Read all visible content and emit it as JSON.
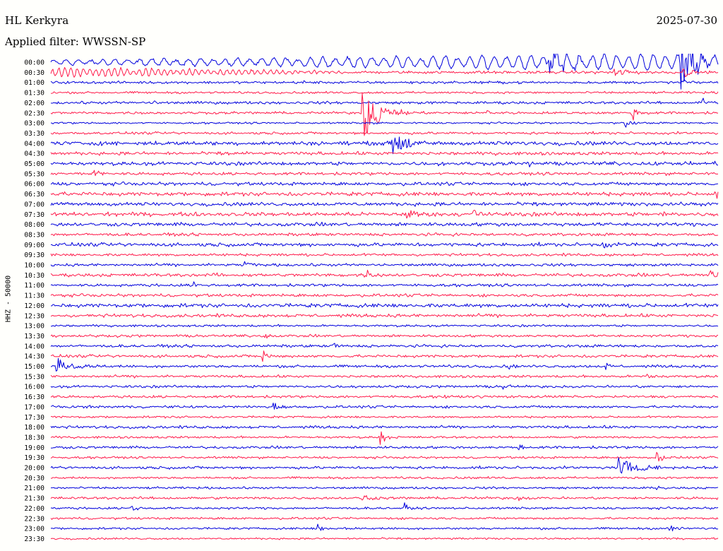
{
  "header": {
    "station": "HL Kerkyra",
    "filter": "Applied filter: WWSSN-SP",
    "date": "2025-07-30",
    "channel": "HHZ - 50000"
  },
  "colors": {
    "trace_a": "#0000dd",
    "trace_b": "#ff1a4a",
    "background": "#fffffc"
  },
  "chart_data": {
    "type": "line",
    "title": "HL Kerkyra",
    "subtitle": "Applied filter: WWSSN-SP",
    "ylabel": "HHZ - 50000",
    "x_unit": "minutes",
    "xlim": [
      0,
      30
    ],
    "categories": [
      "00:00",
      "00:30",
      "01:00",
      "01:30",
      "02:00",
      "02:30",
      "03:00",
      "03:30",
      "04:00",
      "04:30",
      "05:00",
      "05:30",
      "06:00",
      "06:30",
      "07:00",
      "07:30",
      "08:00",
      "08:30",
      "09:00",
      "09:30",
      "10:00",
      "10:30",
      "11:00",
      "11:30",
      "12:00",
      "12:30",
      "13:00",
      "13:30",
      "14:00",
      "14:30",
      "15:00",
      "15:30",
      "16:00",
      "16:30",
      "17:00",
      "17:30",
      "18:00",
      "18:30",
      "19:00",
      "19:30",
      "20:00",
      "20:30",
      "21:00",
      "21:30",
      "22:00",
      "22:30",
      "23:00",
      "23:30"
    ],
    "series_colors": [
      "#0000dd",
      "#ff1a4a"
    ],
    "noise": [
      1.6,
      1.5,
      1.4,
      1.2,
      1.5,
      1.4,
      1.0,
      1.4,
      2.2,
      1.8,
      2.0,
      1.6,
      1.8,
      2.2,
      2.0,
      2.2,
      2.0,
      1.6,
      2.0,
      1.5,
      1.5,
      1.8,
      1.5,
      1.6,
      2.2,
      1.8,
      1.2,
      1.4,
      1.5,
      1.6,
      1.5,
      1.4,
      1.4,
      1.4,
      1.4,
      1.2,
      1.5,
      1.2,
      1.4,
      1.2,
      1.5,
      1.2,
      1.2,
      1.4,
      1.2,
      1.2,
      1.2,
      1.0
    ],
    "oscillations": [
      {
        "row": 0,
        "start": 0.0,
        "end": 30.0,
        "amp": [
          3,
          13
        ],
        "period": 0.55
      },
      {
        "row": 1,
        "start": 0.0,
        "end": 13.0,
        "amp": [
          7,
          2
        ],
        "period": 0.28
      }
    ],
    "events": [
      {
        "row": 0,
        "t": 22.3,
        "amp": 12,
        "dur": 2.0
      },
      {
        "row": 0,
        "t": 28.3,
        "amp": 34,
        "dur": 1.2
      },
      {
        "row": 1,
        "t": 25.3,
        "amp": 6,
        "dur": 1.5
      },
      {
        "row": 1,
        "t": 28.4,
        "amp": 6,
        "dur": 0.8
      },
      {
        "row": 2,
        "t": 11.2,
        "amp": 3,
        "dur": 0.6
      },
      {
        "row": 2,
        "t": 28.4,
        "amp": 6,
        "dur": 0.4
      },
      {
        "row": 4,
        "t": 4.6,
        "amp": 3,
        "dur": 0.3
      },
      {
        "row": 4,
        "t": 29.3,
        "amp": 8,
        "dur": 0.5
      },
      {
        "row": 5,
        "t": 14.0,
        "amp": 28,
        "dur": 1.6
      },
      {
        "row": 5,
        "t": 19.6,
        "amp": 4,
        "dur": 0.4
      },
      {
        "row": 5,
        "t": 26.1,
        "amp": 9,
        "dur": 0.6
      },
      {
        "row": 6,
        "t": 25.8,
        "amp": 5,
        "dur": 0.7
      },
      {
        "row": 8,
        "t": 15.3,
        "amp": 18,
        "dur": 1.2
      },
      {
        "row": 9,
        "t": 7.7,
        "amp": 5,
        "dur": 0.6
      },
      {
        "row": 10,
        "t": 17.3,
        "amp": 4,
        "dur": 0.6
      },
      {
        "row": 10,
        "t": 21.5,
        "amp": 4,
        "dur": 0.5
      },
      {
        "row": 11,
        "t": 1.9,
        "amp": 6,
        "dur": 0.6
      },
      {
        "row": 11,
        "t": 19.7,
        "amp": 3,
        "dur": 0.4
      },
      {
        "row": 13,
        "t": 29.8,
        "amp": 10,
        "dur": 0.5
      },
      {
        "row": 15,
        "t": 16.0,
        "amp": 5,
        "dur": 1.5
      },
      {
        "row": 15,
        "t": 19.0,
        "amp": 8,
        "dur": 0.6
      },
      {
        "row": 15,
        "t": 27.5,
        "amp": 4,
        "dur": 0.8
      },
      {
        "row": 18,
        "t": 24.8,
        "amp": 4,
        "dur": 0.6
      },
      {
        "row": 20,
        "t": 8.7,
        "amp": 5,
        "dur": 0.6
      },
      {
        "row": 21,
        "t": 7.4,
        "amp": 5,
        "dur": 0.5
      },
      {
        "row": 21,
        "t": 14.0,
        "amp": 9,
        "dur": 0.7
      },
      {
        "row": 21,
        "t": 29.6,
        "amp": 9,
        "dur": 0.6
      },
      {
        "row": 22,
        "t": 6.4,
        "amp": 5,
        "dur": 0.3
      },
      {
        "row": 27,
        "t": 9.6,
        "amp": 6,
        "dur": 0.4
      },
      {
        "row": 28,
        "t": 12.7,
        "amp": 5,
        "dur": 0.4
      },
      {
        "row": 29,
        "t": 9.5,
        "amp": 8,
        "dur": 0.5
      },
      {
        "row": 30,
        "t": 0.2,
        "amp": 11,
        "dur": 1.3
      },
      {
        "row": 30,
        "t": 20.5,
        "amp": 4,
        "dur": 0.5
      },
      {
        "row": 30,
        "t": 24.9,
        "amp": 5,
        "dur": 0.5
      },
      {
        "row": 31,
        "t": 26.8,
        "amp": 3,
        "dur": 0.4
      },
      {
        "row": 32,
        "t": 20.3,
        "amp": 4,
        "dur": 0.6
      },
      {
        "row": 33,
        "t": 17.6,
        "amp": 4,
        "dur": 0.4
      },
      {
        "row": 34,
        "t": 10.0,
        "amp": 5,
        "dur": 0.6
      },
      {
        "row": 37,
        "t": 14.8,
        "amp": 8,
        "dur": 0.5
      },
      {
        "row": 38,
        "t": 21.0,
        "amp": 3,
        "dur": 0.5
      },
      {
        "row": 39,
        "t": 27.2,
        "amp": 8,
        "dur": 0.6
      },
      {
        "row": 40,
        "t": 25.5,
        "amp": 11,
        "dur": 1.8
      },
      {
        "row": 42,
        "t": 27.2,
        "amp": 4,
        "dur": 0.4
      },
      {
        "row": 43,
        "t": 14.0,
        "amp": 4,
        "dur": 1.0
      },
      {
        "row": 43,
        "t": 21.0,
        "amp": 4,
        "dur": 0.4
      },
      {
        "row": 44,
        "t": 3.6,
        "amp": 5,
        "dur": 0.5
      },
      {
        "row": 44,
        "t": 15.9,
        "amp": 5,
        "dur": 0.5
      },
      {
        "row": 46,
        "t": 12.0,
        "amp": 5,
        "dur": 0.5
      },
      {
        "row": 46,
        "t": 27.8,
        "amp": 4,
        "dur": 0.6
      }
    ]
  }
}
